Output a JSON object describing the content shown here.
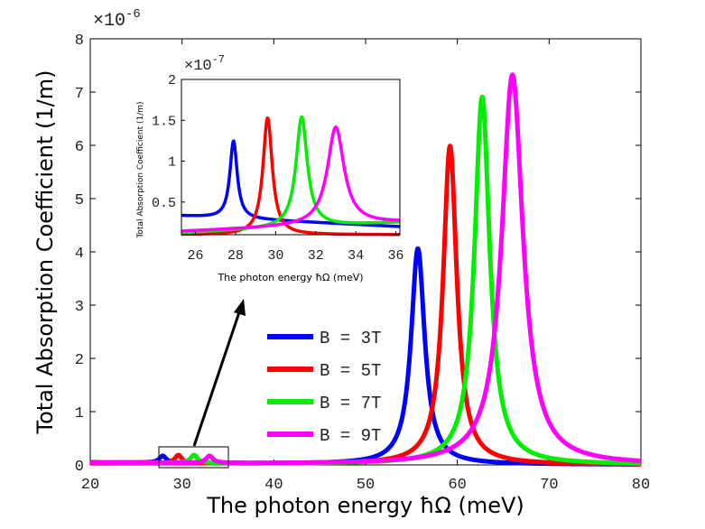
{
  "chart_data": [
    {
      "type": "line",
      "xlabel": "The photon energy ħΩ (meV)",
      "ylabel": "Total Absorption Coefficient (1/m)",
      "xlim": [
        20,
        80
      ],
      "ylim": [
        0,
        8
      ],
      "x_ticks": [
        "20",
        "30",
        "40",
        "50",
        "60",
        "70",
        "80"
      ],
      "y_ticks": [
        "0",
        "1",
        "2",
        "3",
        "4",
        "5",
        "6",
        "7",
        "8"
      ],
      "y_scale_exponent": "×10",
      "y_scale_power": "-6",
      "legend_location": "center",
      "series": [
        {
          "name": "B = 3T",
          "color": "#0000ff",
          "peaks": [
            {
              "x": 27.9,
              "y": 0.13
            },
            {
              "x": 55.7,
              "y": 4.05
            }
          ],
          "baseline": 0.05,
          "width": 0.9
        },
        {
          "name": "B = 5T",
          "color": "#ff0000",
          "peaks": [
            {
              "x": 29.6,
              "y": 0.153
            },
            {
              "x": 59.2,
              "y": 5.98
            }
          ],
          "baseline": 0.04,
          "width": 0.9
        },
        {
          "name": "B = 7T",
          "color": "#00ee00",
          "peaks": [
            {
              "x": 31.3,
              "y": 0.147
            },
            {
              "x": 62.7,
              "y": 6.9
            }
          ],
          "baseline": 0.05,
          "width": 1.0
        },
        {
          "name": "B = 9T",
          "color": "#ff00ff",
          "peaks": [
            {
              "x": 33.0,
              "y": 0.134
            },
            {
              "x": 66.0,
              "y": 7.32
            }
          ],
          "baseline": 0.04,
          "width": 1.4
        }
      ]
    },
    {
      "type": "line",
      "role": "inset",
      "xlabel": "The photon energy ħΩ (meV)",
      "ylabel": "Total Absorption Coefficient (1/m)",
      "xlim": [
        25.3,
        36.2
      ],
      "ylim": [
        0.1,
        2.0
      ],
      "x_ticks": [
        "26",
        "28",
        "30",
        "32",
        "34",
        "36"
      ],
      "y_ticks": [
        "0.5",
        "1",
        "1.5",
        "2"
      ],
      "y_scale_exponent": "×10",
      "y_scale_power": "-7",
      "series": [
        {
          "name": "B = 3T",
          "color": "#0000ff",
          "peak_x": 27.9,
          "peak_y": 1.28
        },
        {
          "name": "B = 5T",
          "color": "#ff0000",
          "peak_x": 29.6,
          "peak_y": 1.53
        },
        {
          "name": "B = 7T",
          "color": "#00ee00",
          "peak_x": 31.3,
          "peak_y": 1.47
        },
        {
          "name": "B = 9T",
          "color": "#ff00ff",
          "peak_x": 33.0,
          "peak_y": 1.34
        }
      ]
    }
  ]
}
